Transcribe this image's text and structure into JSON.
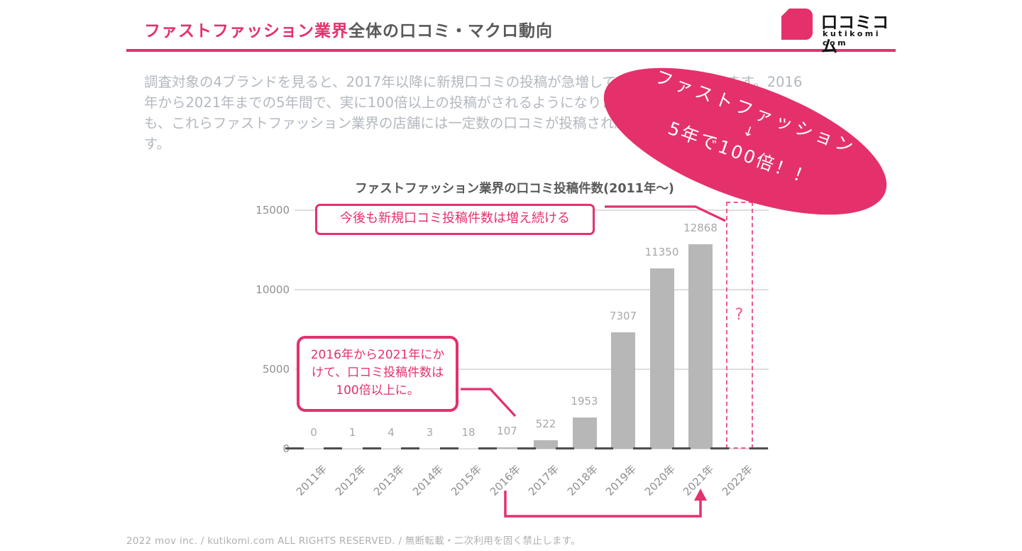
{
  "header": {
    "title_highlight": "ファストファッション業界",
    "title_rest": "全体の口コミ・マクロ動向",
    "logo_name": "口コミコム",
    "logo_sub": "kutikomi com"
  },
  "intro": {
    "lines": [
      "調査対象の4ブランドを見ると、2017年以降に新規口コミの投稿が急増していることがわかります。2016",
      "年から2021年までの5年間で、実に100倍以上の投稿がされるようになりました。2022年以降",
      "も、これらファストファッション業界の店舗には一定数の口コミが投稿され続けると考えられま",
      "す。"
    ]
  },
  "sticker": {
    "line1": "ファストファッション",
    "line2": "↓",
    "line3": "5年で100倍！！"
  },
  "callouts": {
    "future_trend": "今後も新規口コミ投稿件数は増え続ける",
    "growth_lines": [
      "2016年から2021年にか",
      "けて、口コミ投稿件数は",
      "100倍以上に。"
    ]
  },
  "chart_data": {
    "type": "bar",
    "title": "ファストファッション業界の口コミ投稿件数(2011年〜)",
    "categories": [
      "2011年",
      "2012年",
      "2013年",
      "2014年",
      "2015年",
      "2016年",
      "2017年",
      "2018年",
      "2019年",
      "2020年",
      "2021年",
      "2022年"
    ],
    "values": [
      0,
      1,
      4,
      3,
      18,
      107,
      522,
      1953,
      7307,
      11350,
      12868,
      null
    ],
    "future_category": "2022年",
    "future_marker": "?",
    "ylim": [
      0,
      15000
    ],
    "yticks": [
      0,
      5000,
      10000,
      15000
    ],
    "bar_color": "#b7b7b7",
    "grid": true,
    "legend": "none",
    "xlabel": "",
    "ylabel": ""
  },
  "colors": {
    "brand_pink": "#e4316b",
    "dashed_pink": "#ef5a86",
    "bar_gray": "#b7b7b7",
    "text_gray": "#595959",
    "muted_gray": "#b3b8bf"
  },
  "footer": {
    "text": "2022 mov inc. / kutikomi.com ALL RIGHTS RESERVED. / 無断転載・二次利用を固く禁止します。"
  }
}
